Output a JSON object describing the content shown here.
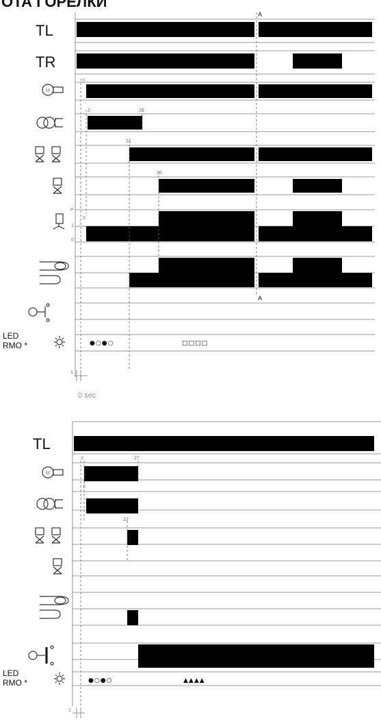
{
  "header": {
    "title_fragment": "ОТА ГОРЕЛКИ"
  },
  "diagram1": {
    "rows": [
      {
        "id": "tl",
        "label": "TL"
      },
      {
        "id": "tr",
        "label": "TR"
      },
      {
        "id": "motor",
        "icon": "motor-icon"
      },
      {
        "id": "transformer",
        "icon": "ignition-transformer-icon"
      },
      {
        "id": "valves-12",
        "icon": "fuel-valves-1-2-icon"
      },
      {
        "id": "valve-3",
        "icon": "fuel-valve-3-icon"
      },
      {
        "id": "air-damper",
        "icon": "air-damper-icon"
      },
      {
        "id": "flame",
        "icon": "flame-output-icon"
      },
      {
        "id": "lockout",
        "icon": "lockout-icon"
      },
      {
        "id": "led",
        "label_line1": "LED",
        "label_line2": "RMO *",
        "icon": "led-sun-icon"
      }
    ],
    "time_marks": [
      "2",
      "2",
      "29",
      "22",
      "26",
      "2"
    ],
    "damper_levels": [
      "P",
      "1",
      "0"
    ],
    "marker_label": "A",
    "marker_label_bottom": "A",
    "led_sequence_1": "●○●○",
    "led_sequence_2": "□□□□",
    "time_zero": "0 sec",
    "time_unit": "1"
  },
  "diagram2": {
    "rows": [
      {
        "id": "tl",
        "label": "TL"
      },
      {
        "id": "motor",
        "icon": "motor-icon"
      },
      {
        "id": "transformer",
        "icon": "ignition-transformer-icon"
      },
      {
        "id": "valves-12",
        "icon": "fuel-valves-1-2-icon"
      },
      {
        "id": "valve-3",
        "icon": "fuel-valve-3-icon"
      },
      {
        "id": "flame",
        "icon": "flame-output-icon"
      },
      {
        "id": "lockout",
        "icon": "lockout-icon"
      },
      {
        "id": "led",
        "label_line1": "LED",
        "label_line2": "RMO *",
        "icon": "led-sun-icon"
      }
    ],
    "time_marks": [
      "2",
      "27",
      "2",
      "22"
    ],
    "led_sequence_1": "●○●○",
    "led_sequence_2": "▲▲▲▲",
    "time_unit": "1"
  }
}
